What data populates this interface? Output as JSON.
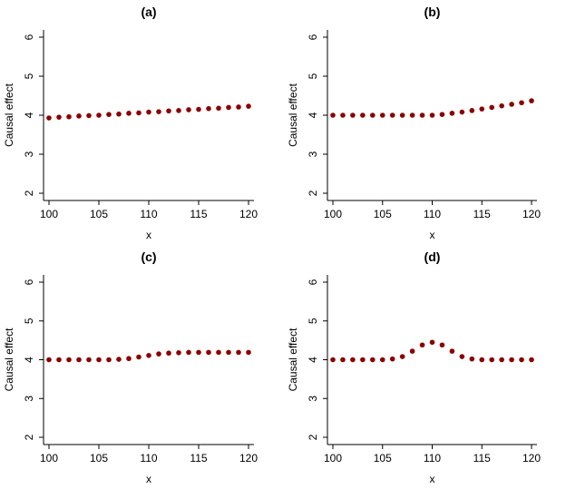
{
  "chart_data": [
    {
      "type": "scatter",
      "title": "(a)",
      "xlabel": "x",
      "ylabel": "Causal effect",
      "xlim": [
        100,
        120
      ],
      "ylim": [
        2,
        6
      ],
      "xticks": [
        100,
        105,
        110,
        115,
        120
      ],
      "yticks": [
        2,
        3,
        4,
        5,
        6
      ],
      "x": [
        100,
        101,
        102,
        103,
        104,
        105,
        106,
        107,
        108,
        109,
        110,
        111,
        112,
        113,
        114,
        115,
        116,
        117,
        118,
        119,
        120
      ],
      "y": [
        3.93,
        3.95,
        3.96,
        3.98,
        3.99,
        4.0,
        4.02,
        4.03,
        4.05,
        4.06,
        4.08,
        4.09,
        4.11,
        4.12,
        4.14,
        4.15,
        4.17,
        4.18,
        4.2,
        4.21,
        4.23
      ],
      "marker_color": "#8b0000"
    },
    {
      "type": "scatter",
      "title": "(b)",
      "xlabel": "x",
      "ylabel": "Causal effect",
      "xlim": [
        100,
        120
      ],
      "ylim": [
        2,
        6
      ],
      "xticks": [
        100,
        105,
        110,
        115,
        120
      ],
      "yticks": [
        2,
        3,
        4,
        5,
        6
      ],
      "x": [
        100,
        101,
        102,
        103,
        104,
        105,
        106,
        107,
        108,
        109,
        110,
        111,
        112,
        113,
        114,
        115,
        116,
        117,
        118,
        119,
        120
      ],
      "y": [
        4.0,
        4.0,
        4.0,
        4.0,
        4.0,
        4.0,
        4.0,
        4.0,
        4.0,
        4.0,
        4.0,
        4.02,
        4.05,
        4.08,
        4.12,
        4.16,
        4.2,
        4.24,
        4.28,
        4.32,
        4.37
      ],
      "marker_color": "#8b0000"
    },
    {
      "type": "scatter",
      "title": "(c)",
      "xlabel": "x",
      "ylabel": "Causal effect",
      "xlim": [
        100,
        120
      ],
      "ylim": [
        2,
        6
      ],
      "xticks": [
        100,
        105,
        110,
        115,
        120
      ],
      "yticks": [
        2,
        3,
        4,
        5,
        6
      ],
      "x": [
        100,
        101,
        102,
        103,
        104,
        105,
        106,
        107,
        108,
        109,
        110,
        111,
        112,
        113,
        114,
        115,
        116,
        117,
        118,
        119,
        120
      ],
      "y": [
        4.0,
        4.0,
        4.0,
        4.0,
        4.0,
        4.0,
        4.0,
        4.01,
        4.03,
        4.07,
        4.11,
        4.15,
        4.17,
        4.18,
        4.19,
        4.19,
        4.19,
        4.19,
        4.19,
        4.19,
        4.19
      ],
      "marker_color": "#8b0000"
    },
    {
      "type": "scatter",
      "title": "(d)",
      "xlabel": "x",
      "ylabel": "Causal effect",
      "xlim": [
        100,
        120
      ],
      "ylim": [
        2,
        6
      ],
      "xticks": [
        100,
        105,
        110,
        115,
        120
      ],
      "yticks": [
        2,
        3,
        4,
        5,
        6
      ],
      "x": [
        100,
        101,
        102,
        103,
        104,
        105,
        106,
        107,
        108,
        109,
        110,
        111,
        112,
        113,
        114,
        115,
        116,
        117,
        118,
        119,
        120
      ],
      "y": [
        4.0,
        4.0,
        4.0,
        4.0,
        4.0,
        4.0,
        4.02,
        4.08,
        4.22,
        4.38,
        4.45,
        4.38,
        4.22,
        4.08,
        4.02,
        4.0,
        4.0,
        4.0,
        4.0,
        4.0,
        4.0
      ],
      "marker_color": "#8b0000"
    }
  ]
}
